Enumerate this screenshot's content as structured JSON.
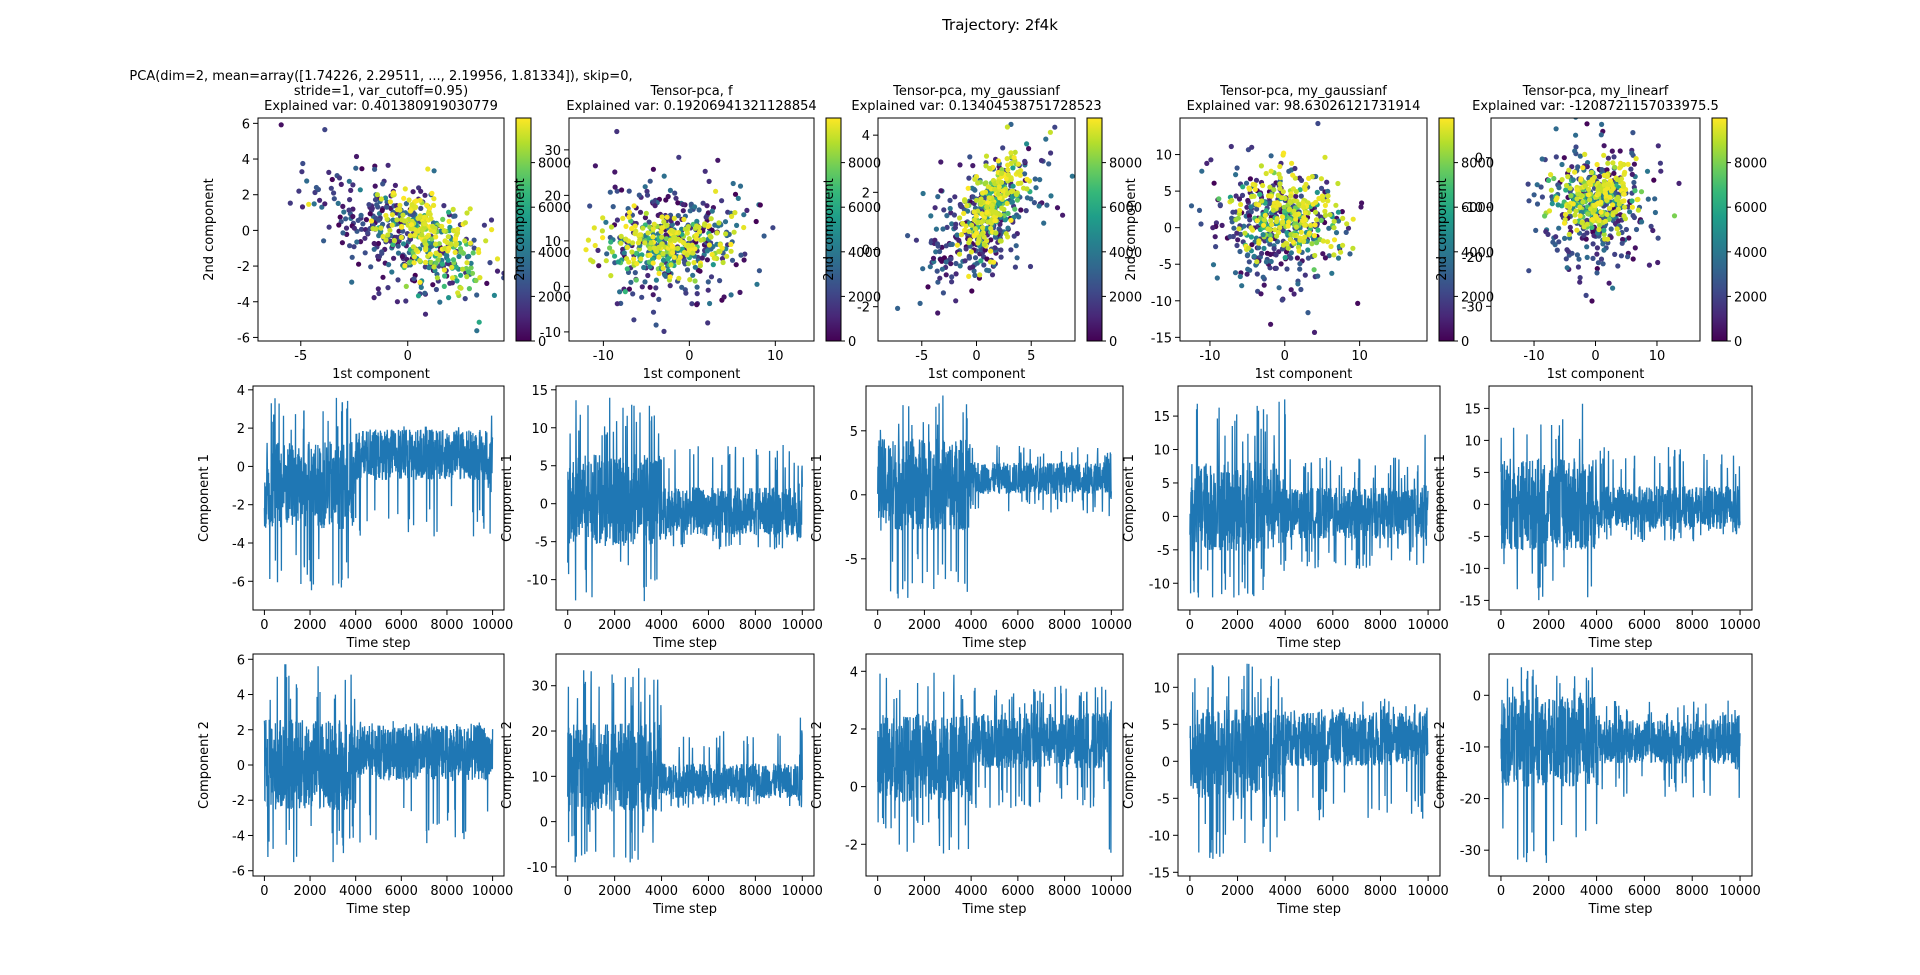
{
  "suptitle": "Trajectory: 2f4k",
  "colormap": "viridis",
  "line_color": "#1f77b4",
  "chart_data": [
    {
      "type": "scatter",
      "title_lines": [
        "PCA(dim=2, mean=array([1.74226, 2.29511, ..., 2.19956, 1.81334]), skip=0,",
        "stride=1, var_cutoff=0.95)",
        "Explained var: 0.401380919030779"
      ],
      "xlabel": "1st component",
      "ylabel": "2nd component",
      "xlim": [
        -7,
        4.5
      ],
      "ylim": [
        -6.2,
        6.3
      ],
      "xticks": [
        -5,
        0
      ],
      "yticks": [
        -6,
        -4,
        -2,
        0,
        2,
        4,
        6
      ],
      "colorbar": {
        "range": [
          0,
          10000
        ],
        "ticks": [
          0,
          2000,
          4000,
          6000,
          8000
        ]
      },
      "clusters": [
        {
          "t": [
            0,
            4000
          ],
          "cx": -0.8,
          "cy": 0.0,
          "sx": 2.0,
          "sy": 1.9,
          "rho": -0.55,
          "n": 300
        },
        {
          "t": [
            4000,
            9000
          ],
          "cx": 1.2,
          "cy": -1.0,
          "sx": 1.2,
          "sy": 1.3,
          "rho": -0.6,
          "n": 110
        },
        {
          "t": [
            9000,
            10000
          ],
          "cx": 0.6,
          "cy": 0.2,
          "sx": 1.3,
          "sy": 1.2,
          "rho": -0.45,
          "n": 160
        }
      ]
    },
    {
      "type": "scatter",
      "title_lines": [
        "Tensor-pca, f",
        "Explained var: 0.19206941321128854"
      ],
      "xlabel": "1st component",
      "ylabel": "2nd component",
      "xlim": [
        -14,
        14.5
      ],
      "ylim": [
        -12,
        37
      ],
      "xticks": [
        -10,
        0,
        10
      ],
      "yticks": [
        -10,
        0,
        10,
        20,
        30
      ],
      "colorbar": {
        "range": [
          0,
          10000
        ],
        "ticks": [
          0,
          2000,
          4000,
          6000,
          8000
        ]
      },
      "clusters": [
        {
          "t": [
            0,
            4000
          ],
          "cx": -1.5,
          "cy": 10,
          "sx": 4.5,
          "sy": 7.0,
          "rho": 0.05,
          "n": 300
        },
        {
          "t": [
            4000,
            9000
          ],
          "cx": -3,
          "cy": 8,
          "sx": 3.5,
          "sy": 3.0,
          "rho": 0.1,
          "n": 110
        },
        {
          "t": [
            9000,
            10000
          ],
          "cx": -2,
          "cy": 10,
          "sx": 3.8,
          "sy": 3.2,
          "rho": 0.0,
          "n": 160
        }
      ]
    },
    {
      "type": "scatter",
      "title_lines": [
        "Tensor-pca, my_gaussianf",
        "Explained var: 0.13404538751728523"
      ],
      "xlabel": "1st component",
      "ylabel": "2nd component",
      "xlim": [
        -9,
        9
      ],
      "ylim": [
        -3.2,
        4.6
      ],
      "xticks": [
        -5,
        0,
        5
      ],
      "yticks": [
        -2,
        0,
        2,
        4
      ],
      "colorbar": {
        "range": [
          0,
          10000
        ],
        "ticks": [
          0,
          2000,
          4000,
          6000,
          8000
        ]
      },
      "clusters": [
        {
          "t": [
            0,
            4000
          ],
          "cx": 0.6,
          "cy": 0.8,
          "sx": 2.6,
          "sy": 1.2,
          "rho": 0.45,
          "n": 300
        },
        {
          "t": [
            4000,
            9000
          ],
          "cx": 1.6,
          "cy": 1.5,
          "sx": 1.2,
          "sy": 0.8,
          "rho": 0.5,
          "n": 110
        },
        {
          "t": [
            9000,
            10000
          ],
          "cx": 1.4,
          "cy": 1.6,
          "sx": 1.4,
          "sy": 0.9,
          "rho": 0.55,
          "n": 160
        }
      ]
    },
    {
      "type": "scatter",
      "title_lines": [
        "Tensor-pca, my_gaussianf",
        "Explained var: 98.63026121731914"
      ],
      "xlabel": "1st component",
      "ylabel": "2nd component",
      "xlim": [
        -14,
        19
      ],
      "ylim": [
        -15.5,
        15
      ],
      "xticks": [
        -10,
        0,
        10
      ],
      "yticks": [
        -15,
        -10,
        -5,
        0,
        5,
        10
      ],
      "colorbar": {
        "range": [
          0,
          10000
        ],
        "ticks": [
          0,
          2000,
          4000,
          6000,
          8000
        ]
      },
      "clusters": [
        {
          "t": [
            0,
            4000
          ],
          "cx": -1,
          "cy": 0,
          "sx": 4.5,
          "sy": 4.5,
          "rho": -0.1,
          "n": 300
        },
        {
          "t": [
            4000,
            9000
          ],
          "cx": 0,
          "cy": 1,
          "sx": 3.0,
          "sy": 2.5,
          "rho": -0.1,
          "n": 110
        },
        {
          "t": [
            9000,
            10000
          ],
          "cx": 1,
          "cy": 2,
          "sx": 3.5,
          "sy": 3.0,
          "rho": -0.1,
          "n": 160
        }
      ]
    },
    {
      "type": "scatter",
      "title_lines": [
        "Tensor-pca, my_linearf",
        "Explained var: -1208721157033975.5"
      ],
      "xlabel": "1st component",
      "ylabel": "2nd component",
      "xlim": [
        -17,
        17
      ],
      "ylim": [
        -37,
        8
      ],
      "xticks": [
        -10,
        0,
        10
      ],
      "yticks": [
        -30,
        -20,
        -10,
        0
      ],
      "colorbar": {
        "range": [
          0,
          10000
        ],
        "ticks": [
          0,
          2000,
          4000,
          6000,
          8000
        ]
      },
      "clusters": [
        {
          "t": [
            0,
            4000
          ],
          "cx": 0,
          "cy": -10,
          "sx": 4.5,
          "sy": 6.5,
          "rho": 0.0,
          "n": 300
        },
        {
          "t": [
            4000,
            9000
          ],
          "cx": 0,
          "cy": -9,
          "sx": 3.0,
          "sy": 3.0,
          "rho": 0.0,
          "n": 110
        },
        {
          "t": [
            9000,
            10000
          ],
          "cx": 0,
          "cy": -8,
          "sx": 3.5,
          "sy": 3.5,
          "rho": 0.0,
          "n": 160
        }
      ]
    },
    {
      "type": "line",
      "xlabel": "Time step",
      "ylabel": "Component 1",
      "xlim": [
        -500,
        10500
      ],
      "ylim": [
        -7.5,
        4.2
      ],
      "xticks": [
        0,
        2000,
        4000,
        6000,
        8000,
        10000
      ],
      "yticks": [
        -6,
        -4,
        -2,
        0,
        2,
        4
      ],
      "segments": [
        {
          "t": [
            0,
            4000
          ],
          "mean": -1.0,
          "low": -6.6,
          "high": 3.6
        },
        {
          "t": [
            4000,
            9800
          ],
          "mean": 0.6,
          "low": -3.8,
          "high": 2.1
        },
        {
          "t": [
            9800,
            10000
          ],
          "mean": 0.0,
          "low": -4.8,
          "high": 3.0
        }
      ]
    },
    {
      "type": "line",
      "xlabel": "Time step",
      "ylabel": "Component 1",
      "xlim": [
        -500,
        10500
      ],
      "ylim": [
        -14,
        15.5
      ],
      "xticks": [
        0,
        2000,
        4000,
        6000,
        8000,
        10000
      ],
      "yticks": [
        -10,
        -5,
        0,
        5,
        10,
        15
      ],
      "segments": [
        {
          "t": [
            0,
            4000
          ],
          "mean": 0.5,
          "low": -13,
          "high": 14
        },
        {
          "t": [
            4000,
            9800
          ],
          "mean": -1.0,
          "low": -6,
          "high": 8
        },
        {
          "t": [
            9800,
            10000
          ],
          "mean": -1.0,
          "low": -10,
          "high": 6
        }
      ]
    },
    {
      "type": "line",
      "xlabel": "Time step",
      "ylabel": "Component 1",
      "xlim": [
        -500,
        10500
      ],
      "ylim": [
        -9,
        8.5
      ],
      "xticks": [
        0,
        2000,
        4000,
        6000,
        8000,
        10000
      ],
      "yticks": [
        -5,
        0,
        5
      ],
      "segments": [
        {
          "t": [
            0,
            4000
          ],
          "mean": 0.8,
          "low": -8.2,
          "high": 7.8
        },
        {
          "t": [
            4000,
            9800
          ],
          "mean": 1.3,
          "low": -1.5,
          "high": 4.0
        },
        {
          "t": [
            9800,
            10000
          ],
          "mean": 1.3,
          "low": -3.0,
          "high": 6.2
        }
      ]
    },
    {
      "type": "line",
      "xlabel": "Time step",
      "ylabel": "Component 1",
      "xlim": [
        -500,
        10500
      ],
      "ylim": [
        -14,
        19.5
      ],
      "xticks": [
        0,
        2000,
        4000,
        6000,
        8000,
        10000
      ],
      "yticks": [
        -10,
        -5,
        0,
        5,
        10,
        15
      ],
      "segments": [
        {
          "t": [
            0,
            4000
          ],
          "mean": 1.5,
          "low": -12.5,
          "high": 17.5
        },
        {
          "t": [
            4000,
            9800
          ],
          "mean": 0.5,
          "low": -8,
          "high": 9
        },
        {
          "t": [
            9800,
            10000
          ],
          "mean": 0.0,
          "low": -9,
          "high": 15
        }
      ]
    },
    {
      "type": "line",
      "xlabel": "Time step",
      "ylabel": "Component 1",
      "xlim": [
        -500,
        10500
      ],
      "ylim": [
        -16.5,
        18.5
      ],
      "xticks": [
        0,
        2000,
        4000,
        6000,
        8000,
        10000
      ],
      "yticks": [
        -15,
        -10,
        -5,
        0,
        5,
        10,
        15
      ],
      "segments": [
        {
          "t": [
            0,
            4000
          ],
          "mean": 0.0,
          "low": -15,
          "high": 17
        },
        {
          "t": [
            4000,
            9800
          ],
          "mean": -0.5,
          "low": -6,
          "high": 9
        },
        {
          "t": [
            9800,
            10000
          ],
          "mean": -1.0,
          "low": -11.5,
          "high": 6
        }
      ]
    },
    {
      "type": "line",
      "xlabel": "Time step",
      "ylabel": "Component 2",
      "xlim": [
        -500,
        10500
      ],
      "ylim": [
        -6.3,
        6.3
      ],
      "xticks": [
        0,
        2000,
        4000,
        6000,
        8000,
        10000
      ],
      "yticks": [
        -6,
        -4,
        -2,
        0,
        2,
        4,
        6
      ],
      "segments": [
        {
          "t": [
            0,
            4000
          ],
          "mean": 0.0,
          "low": -5.7,
          "high": 5.8
        },
        {
          "t": [
            4000,
            9800
          ],
          "mean": 0.7,
          "low": -4.5,
          "high": 2.5
        },
        {
          "t": [
            9800,
            10000
          ],
          "mean": 0.5,
          "low": -4.0,
          "high": 3.0
        }
      ]
    },
    {
      "type": "line",
      "xlabel": "Time step",
      "ylabel": "Component 2",
      "xlim": [
        -500,
        10500
      ],
      "ylim": [
        -12,
        37
      ],
      "xticks": [
        0,
        2000,
        4000,
        6000,
        8000,
        10000
      ],
      "yticks": [
        -10,
        0,
        10,
        20,
        30
      ],
      "segments": [
        {
          "t": [
            0,
            4000
          ],
          "mean": 12,
          "low": -9,
          "high": 34.5
        },
        {
          "t": [
            4000,
            9800
          ],
          "mean": 9,
          "low": 3,
          "high": 20
        },
        {
          "t": [
            9800,
            10000
          ],
          "mean": 9,
          "low": -3,
          "high": 24
        }
      ]
    },
    {
      "type": "line",
      "xlabel": "Time step",
      "ylabel": "Component 2",
      "xlim": [
        -500,
        10500
      ],
      "ylim": [
        -3.1,
        4.6
      ],
      "xticks": [
        0,
        2000,
        4000,
        6000,
        8000,
        10000
      ],
      "yticks": [
        -2,
        0,
        2,
        4
      ],
      "segments": [
        {
          "t": [
            0,
            4000
          ],
          "mean": 1.0,
          "low": -2.4,
          "high": 4.3
        },
        {
          "t": [
            4000,
            9800
          ],
          "mean": 1.6,
          "low": -0.8,
          "high": 3.5
        },
        {
          "t": [
            9800,
            10000
          ],
          "mean": 1.5,
          "low": -2.8,
          "high": 3.8
        }
      ]
    },
    {
      "type": "line",
      "xlabel": "Time step",
      "ylabel": "Component 2",
      "xlim": [
        -500,
        10500
      ],
      "ylim": [
        -15.5,
        14.5
      ],
      "xticks": [
        0,
        2000,
        4000,
        6000,
        8000,
        10000
      ],
      "yticks": [
        -15,
        -10,
        -5,
        0,
        5,
        10
      ],
      "segments": [
        {
          "t": [
            0,
            4000
          ],
          "mean": 1.0,
          "low": -13.5,
          "high": 13.5
        },
        {
          "t": [
            4000,
            9800
          ],
          "mean": 3.0,
          "low": -8,
          "high": 8.5
        },
        {
          "t": [
            9800,
            10000
          ],
          "mean": 3.5,
          "low": -5,
          "high": 13
        }
      ]
    },
    {
      "type": "line",
      "xlabel": "Time step",
      "ylabel": "Component 2",
      "xlim": [
        -500,
        10500
      ],
      "ylim": [
        -35,
        8
      ],
      "xticks": [
        0,
        2000,
        4000,
        6000,
        8000,
        10000
      ],
      "yticks": [
        -30,
        -20,
        -10,
        0
      ],
      "segments": [
        {
          "t": [
            0,
            4000
          ],
          "mean": -9,
          "low": -33.5,
          "high": 5.5
        },
        {
          "t": [
            4000,
            9800
          ],
          "mean": -9,
          "low": -20,
          "high": -1
        },
        {
          "t": [
            9800,
            10000
          ],
          "mean": -9,
          "low": -27,
          "high": -2
        }
      ]
    }
  ]
}
